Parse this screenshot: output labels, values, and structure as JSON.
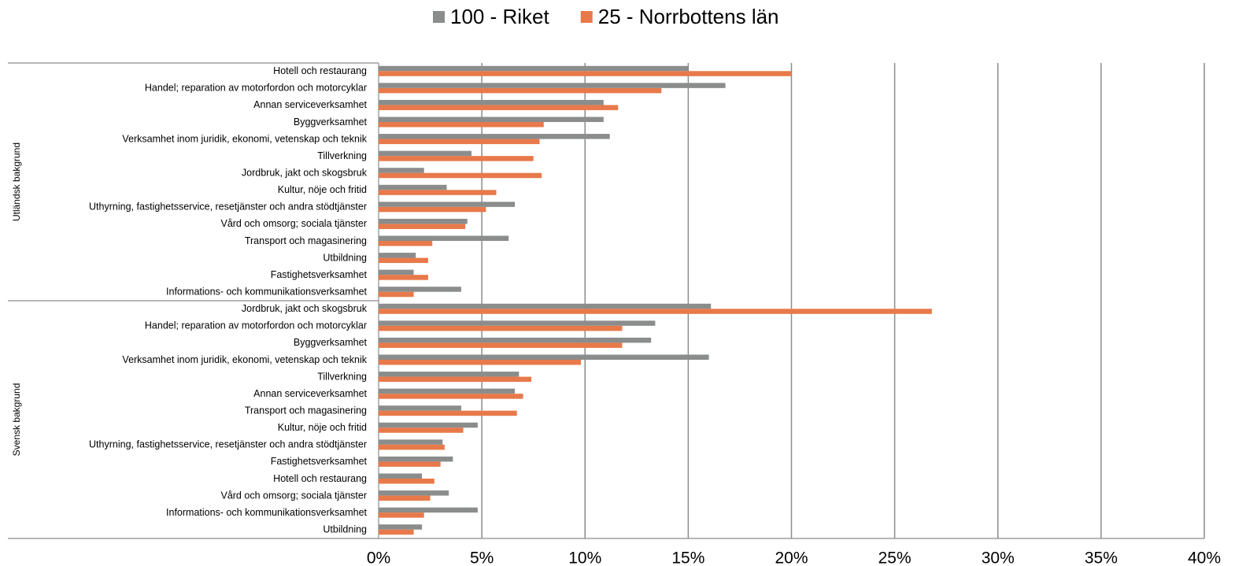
{
  "chart_data": {
    "type": "bar",
    "orientation": "horizontal",
    "groups": [
      {
        "name": "Utländsk bakgrund",
        "categories": [
          "Hotell och restaurang",
          "Handel; reparation av motorfordon och motorcyklar",
          "Annan serviceverksamhet",
          "Byggverksamhet",
          "Verksamhet inom juridik, ekonomi, vetenskap och teknik",
          "Tillverkning",
          "Jordbruk, jakt och skogsbruk",
          "Kultur, nöje och fritid",
          "Uthyrning, fastighetsservice, resetjänster och andra stödtjänster",
          "Vård och omsorg; sociala tjänster",
          "Transport och magasinering",
          "Utbildning",
          "Fastighetsverksamhet",
          "Informations- och kommunikationsverksamhet"
        ]
      },
      {
        "name": "Svensk bakgrund",
        "categories": [
          "Jordbruk, jakt och skogsbruk",
          "Handel; reparation av motorfordon och motorcyklar",
          "Byggverksamhet",
          "Verksamhet inom juridik, ekonomi, vetenskap och teknik",
          "Tillverkning",
          "Annan serviceverksamhet",
          "Transport och magasinering",
          "Kultur, nöje och fritid",
          "Uthyrning, fastighetsservice, resetjänster och andra stödtjänster",
          "Fastighetsverksamhet",
          "Hotell och restaurang",
          "Vård och omsorg; sociala tjänster",
          "Informations- och kommunikationsverksamhet",
          "Utbildning"
        ]
      }
    ],
    "series": [
      {
        "name": "100 - Riket",
        "color": "#8a8d8c",
        "values": [
          15.0,
          16.8,
          10.9,
          10.9,
          11.2,
          4.5,
          2.2,
          3.3,
          6.6,
          4.3,
          6.3,
          1.8,
          1.7,
          4.0,
          16.1,
          13.4,
          13.2,
          16.0,
          6.8,
          6.6,
          4.0,
          4.8,
          3.1,
          3.6,
          2.1,
          3.4,
          4.8,
          2.1
        ]
      },
      {
        "name": "25 - Norrbottens län",
        "color": "#e8794a",
        "values": [
          20.0,
          13.7,
          11.6,
          8.0,
          7.8,
          7.5,
          7.9,
          5.7,
          5.2,
          4.2,
          2.6,
          2.4,
          2.4,
          1.7,
          26.8,
          11.8,
          11.8,
          9.8,
          7.4,
          7.0,
          6.7,
          4.1,
          3.2,
          3.0,
          2.7,
          2.5,
          2.2,
          1.7
        ]
      }
    ],
    "xlim": [
      0,
      40
    ],
    "xticks": [
      {
        "value": 0,
        "label": "0%"
      },
      {
        "value": 5,
        "label": "5%"
      },
      {
        "value": 10,
        "label": "10%"
      },
      {
        "value": 15,
        "label": "15%"
      },
      {
        "value": 20,
        "label": "20%"
      },
      {
        "value": 25,
        "label": "25%"
      },
      {
        "value": 30,
        "label": "30%"
      },
      {
        "value": 35,
        "label": "35%"
      },
      {
        "value": 40,
        "label": "40%"
      }
    ],
    "grid": true,
    "legend": "top"
  }
}
